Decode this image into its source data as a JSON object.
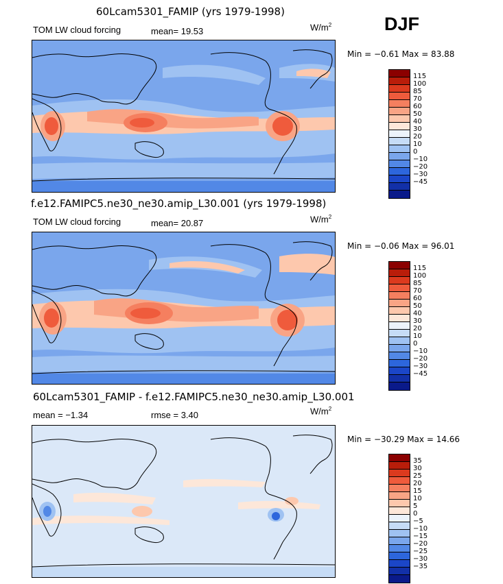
{
  "season": "DJF",
  "units_base": "W/m",
  "units_exp": "2",
  "panels": [
    {
      "title": "60Lcam5301_FAMIP (yrs 1979-1998)",
      "left_label": "TOM LW cloud forcing",
      "stat": "mean=  19.53",
      "minmax": "Min =  −0.61  Max =  83.88"
    },
    {
      "title": "f.e12.FAMIPC5.ne30_ne30.amip_L30.001 (yrs 1979-1998)",
      "left_label": "TOM LW cloud forcing",
      "stat": "mean=  20.87",
      "minmax": "Min =  −0.06  Max =  96.01"
    },
    {
      "title": "60Lcam5301_FAMIP - f.e12.FAMIPC5.ne30_ne30.amip_L30.001",
      "left_label": "mean =  −1.34",
      "stat": "rmse =   3.40",
      "minmax": "Min = −30.29  Max =  14.66"
    }
  ],
  "colorbar_field": {
    "colors": [
      "#8b0000",
      "#b91d0a",
      "#dc3a1e",
      "#ef5b3c",
      "#f57f5f",
      "#f9a485",
      "#fdc8ad",
      "#fde7d9",
      "#ecf3fb",
      "#c6dcf6",
      "#9fc2f2",
      "#7aa6ec",
      "#5288e6",
      "#2d66dc",
      "#1b46c8",
      "#1230a8",
      "#0a1a8a"
    ],
    "labels": [
      "115",
      "100",
      "85",
      "70",
      "60",
      "50",
      "40",
      "30",
      "20",
      "10",
      "0",
      "−10",
      "−20",
      "−30",
      "−45"
    ]
  },
  "colorbar_diff": {
    "colors": [
      "#8b0000",
      "#b91d0a",
      "#dc3a1e",
      "#ef5b3c",
      "#f57f5f",
      "#f9a485",
      "#fdc8ad",
      "#fde7d9",
      "#ecf3fb",
      "#c6dcf6",
      "#9fc2f2",
      "#7aa6ec",
      "#5288e6",
      "#2d66dc",
      "#1b46c8",
      "#1230a8",
      "#0a1a8a"
    ],
    "labels": [
      "35",
      "30",
      "25",
      "20",
      "15",
      "10",
      "5",
      "0",
      "−5",
      "−10",
      "−15",
      "−20",
      "−25",
      "−30",
      "−35"
    ]
  },
  "colors": {
    "base_blue": "#7aa6ec",
    "light_blue": "#9fc2f2",
    "pale_blue": "#c6dcf6",
    "very_pale": "#dbe8f8",
    "peach": "#fdc8ad",
    "salmon": "#f9a485",
    "orange_red": "#ef5b3c",
    "deep_blue": "#5288e6"
  }
}
